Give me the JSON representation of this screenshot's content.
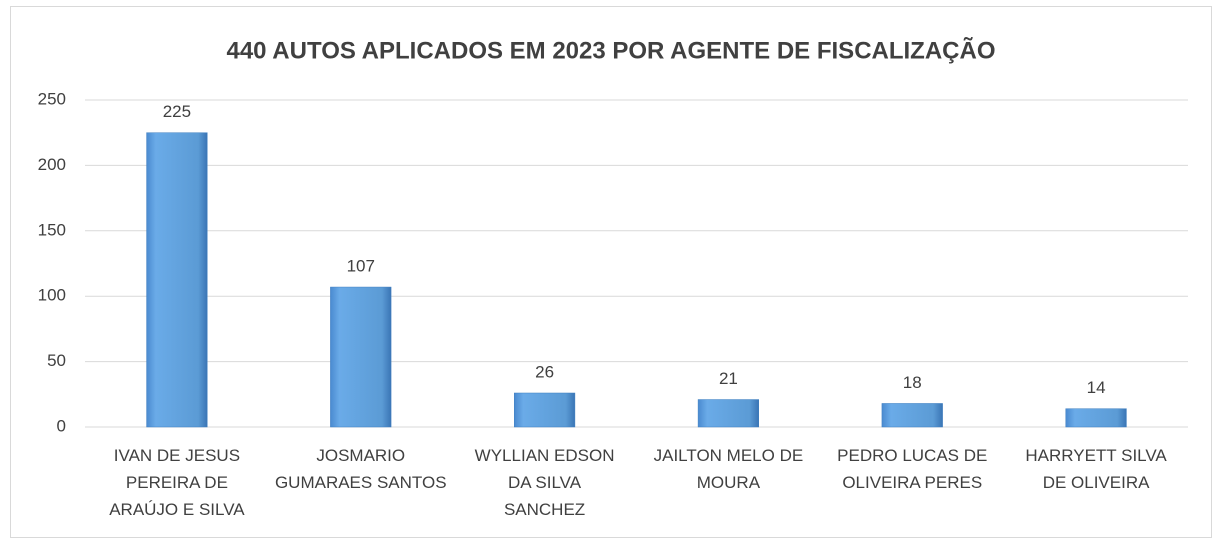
{
  "chart_data": {
    "type": "bar",
    "title": "440 AUTOS APLICADOS EM 2023 POR AGENTE DE FISCALIZAÇÃO",
    "categories": [
      "IVAN DE JESUS PEREIRA DE ARAÚJO E SILVA",
      "JOSMARIO GUMARAES SANTOS",
      "WYLLIAN EDSON DA SILVA SANCHEZ",
      "JAILTON MELO DE MOURA",
      "PEDRO LUCAS DE OLIVEIRA PERES",
      "HARRYETT SILVA DE OLIVEIRA"
    ],
    "values": [
      225,
      107,
      26,
      21,
      18,
      14
    ],
    "color": "#5b9bd5",
    "ylim": [
      0,
      250
    ],
    "yticks": [
      0,
      50,
      100,
      150,
      200,
      250
    ],
    "grid": true
  }
}
